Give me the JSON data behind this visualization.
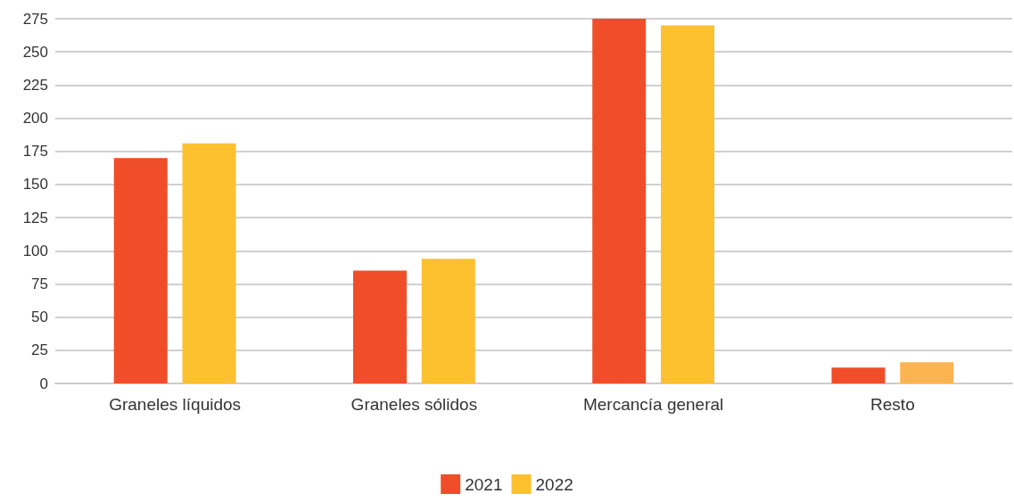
{
  "chart_data": {
    "type": "bar",
    "categories": [
      "Graneles líquidos",
      "Graneles sólidos",
      "Mercancía general",
      "Resto"
    ],
    "series": [
      {
        "name": "2021",
        "color": "#f04e28",
        "values": [
          170,
          85,
          275,
          12
        ]
      },
      {
        "name": "2022",
        "color": "#fdc02f",
        "colors": [
          "#fdc02f",
          "#fdc02f",
          "#fdc02f",
          "#fbb550"
        ],
        "values": [
          181,
          94,
          270,
          16
        ]
      }
    ],
    "ylim": [
      0,
      275
    ],
    "yticks": [
      0,
      25,
      50,
      75,
      100,
      125,
      150,
      175,
      200,
      225,
      250,
      275
    ],
    "grid": "y",
    "legend": "bottom"
  }
}
